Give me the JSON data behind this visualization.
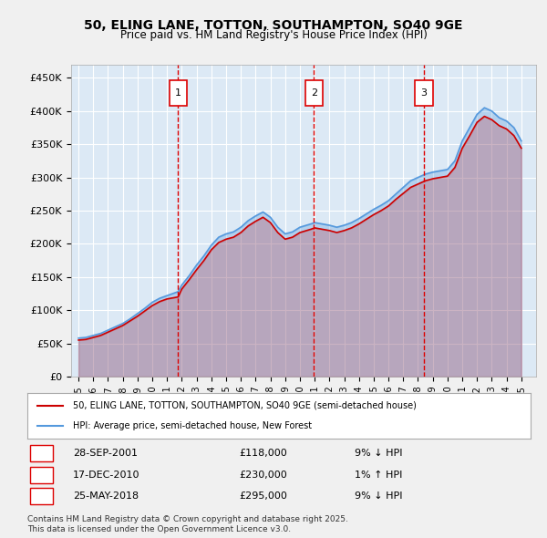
{
  "title": "50, ELING LANE, TOTTON, SOUTHAMPTON, SO40 9GE",
  "subtitle": "Price paid vs. HM Land Registry's House Price Index (HPI)",
  "background_color": "#dce9f5",
  "plot_bg_color": "#dce9f5",
  "grid_color": "#ffffff",
  "ylabel": "",
  "ylim": [
    0,
    470000
  ],
  "yticks": [
    0,
    50000,
    100000,
    150000,
    200000,
    250000,
    300000,
    350000,
    400000,
    450000
  ],
  "ytick_labels": [
    "£0",
    "£50K",
    "£100K",
    "£150K",
    "£200K",
    "£250K",
    "£300K",
    "£350K",
    "£400K",
    "£450K"
  ],
  "xlim_start": 1994.5,
  "xlim_end": 2026.0,
  "sale_dates": [
    "2001-09-28",
    "2010-12-17",
    "2018-05-25"
  ],
  "sale_prices": [
    118000,
    230000,
    295000
  ],
  "sale_labels": [
    "1",
    "2",
    "3"
  ],
  "sale_date_strs": [
    "28-SEP-2001",
    "17-DEC-2010",
    "25-MAY-2018"
  ],
  "sale_pct": [
    "9% ↓ HPI",
    "1% ↑ HPI",
    "9% ↓ HPI"
  ],
  "legend_line1": "50, ELING LANE, TOTTON, SOUTHAMPTON, SO40 9GE (semi-detached house)",
  "legend_line2": "HPI: Average price, semi-detached house, New Forest",
  "footer": "Contains HM Land Registry data © Crown copyright and database right 2025.\nThis data is licensed under the Open Government Licence v3.0.",
  "line_color_red": "#cc0000",
  "line_color_blue": "#5599dd",
  "vline_color": "#dd0000"
}
